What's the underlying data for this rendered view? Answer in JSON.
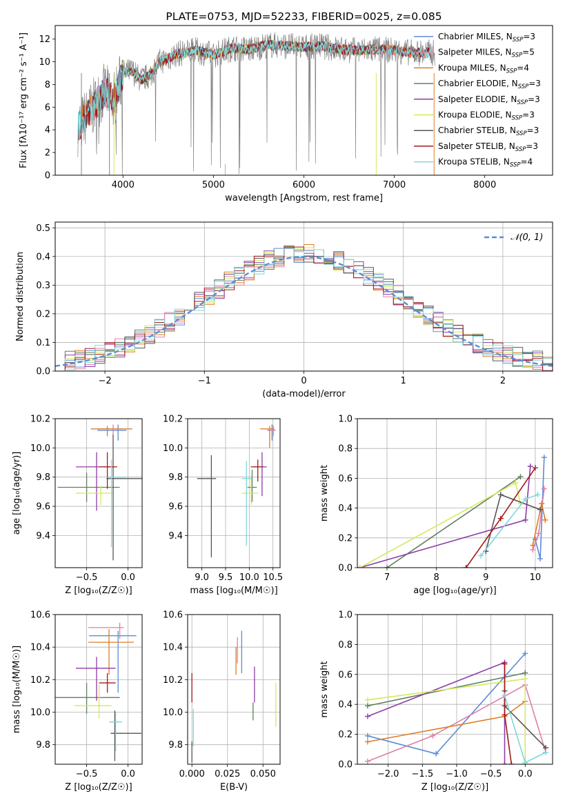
{
  "figure": {
    "title": "PLATE=0753, MJD=52233, FIBERID=0025, z=0.085"
  },
  "colors": {
    "Chabrier MILES": "#5b8bd6",
    "Salpeter MILES": "#e07ea8",
    "Kroupa MILES": "#e07b25",
    "Chabrier ELODIE": "#5f7f5f",
    "Salpeter ELODIE": "#8e3aa8",
    "Kroupa ELODIE": "#d6e85c",
    "Chabrier STELIB": "#555555",
    "Salpeter STELIB": "#a31818",
    "Kroupa STELIB": "#7fd6dc"
  },
  "chart_data": [
    {
      "id": "spectrum",
      "type": "line",
      "title": "PLATE=0753, MJD=52233, FIBERID=0025, z=0.085",
      "xlabel": "wavelength [Angstrom, rest frame]",
      "ylabel": "Flux [fλ10⁻¹⁷ erg cm⁻² s⁻¹ A⁻¹]",
      "xlim": [
        3250,
        8750
      ],
      "ylim": [
        0,
        13.2
      ],
      "xticks": [
        4000,
        5000,
        6000,
        7000,
        8000
      ],
      "yticks": [
        0,
        2,
        4,
        6,
        8,
        10,
        12
      ],
      "legend_position": "top-right",
      "legend": [
        "Chabrier MILES, N_SSP=3",
        "Salpeter MILES, N_SSP=5",
        "Kroupa MILES, N_SSP=4",
        "Chabrier ELODIE, N_SSP=3",
        "Salpeter ELODIE, N_SSP=3",
        "Kroupa ELODIE, N_SSP=3",
        "Chabrier STELIB, N_SSP=3",
        "Salpeter STELIB, N_SSP=3",
        "Kroupa STELIB, N_SSP=4"
      ],
      "continuum": {
        "x": [
          3500,
          3600,
          3700,
          3800,
          3900,
          4000,
          4100,
          4200,
          4300,
          4400,
          4500,
          4600,
          4800,
          5000,
          5200,
          5400,
          5600,
          5800,
          6000,
          6200,
          6400,
          6600,
          6800,
          7000,
          7200,
          7400
        ],
        "y": [
          4.2,
          5.2,
          6.3,
          7.4,
          6.6,
          9.0,
          9.2,
          8.4,
          8.8,
          10.0,
          10.3,
          10.7,
          11.0,
          10.6,
          11.2,
          11.1,
          11.5,
          11.4,
          11.3,
          11.4,
          11.1,
          11.0,
          11.1,
          11.0,
          10.8,
          10.8
        ]
      },
      "data_range": [
        3500,
        7450
      ],
      "model_ranges": {
        "Chabrier MILES": [
          3540,
          7400
        ],
        "Salpeter MILES": [
          3540,
          7400
        ],
        "Kroupa MILES": [
          3540,
          7420
        ],
        "Chabrier ELODIE": [
          3900,
          6800
        ],
        "Salpeter ELODIE": [
          3900,
          6800
        ],
        "Kroupa ELODIE": [
          3900,
          6800
        ],
        "Chabrier STELIB": [
          3500,
          7400
        ],
        "Salpeter STELIB": [
          3500,
          7400
        ],
        "Kroupa STELIB": [
          3500,
          7420
        ]
      }
    },
    {
      "id": "residuals",
      "type": "line",
      "xlabel": "(data-model)/error",
      "ylabel": "Normed distribution",
      "xlim": [
        -2.5,
        2.5
      ],
      "ylim": [
        0,
        0.52
      ],
      "xticks": [
        -2,
        -1,
        0,
        1,
        2
      ],
      "yticks": [
        0.0,
        0.1,
        0.2,
        0.3,
        0.4,
        0.5
      ],
      "legend_position": "top-right",
      "reference_label": "𝒩(0, 1)",
      "reference_color": "#5b8bd6"
    },
    {
      "id": "age-z",
      "type": "scatter",
      "xlabel": "Z [log₁₀(Z/Z☉)]",
      "ylabel": "age  [log₁₀(age/yr)]",
      "xlim": [
        -0.88,
        0.17
      ],
      "ylim": [
        9.18,
        10.2
      ],
      "xticks": [
        -0.5,
        0.0
      ],
      "yticks": [
        9.4,
        9.6,
        9.8,
        10.0,
        10.2
      ],
      "series": [
        {
          "name": "Chabrier MILES",
          "x": -0.12,
          "xerr": [
            0.25,
            0.1
          ],
          "y": 10.12,
          "yerr": [
            0.07,
            0.04
          ]
        },
        {
          "name": "Salpeter MILES",
          "x": -0.18,
          "xerr": [
            0.2,
            0.12
          ],
          "y": 10.13,
          "yerr": [
            0.05,
            0.03
          ]
        },
        {
          "name": "Kroupa MILES",
          "x": -0.25,
          "xerr": [
            0.2,
            0.3
          ],
          "y": 10.13,
          "yerr": [
            0.05,
            0.02
          ]
        },
        {
          "name": "Chabrier ELODIE",
          "x": -0.5,
          "xerr": [
            0.35,
            0.4
          ],
          "y": 9.73,
          "yerr": [
            0.1,
            0.1
          ]
        },
        {
          "name": "Salpeter ELODIE",
          "x": -0.38,
          "xerr": [
            0.25,
            0.2
          ],
          "y": 9.87,
          "yerr": [
            0.3,
            0.1
          ]
        },
        {
          "name": "Kroupa ELODIE",
          "x": -0.33,
          "xerr": [
            0.3,
            0.15
          ],
          "y": 9.69,
          "yerr": [
            0.08,
            0.05
          ]
        },
        {
          "name": "Chabrier STELIB",
          "x": -0.18,
          "xerr": [
            0.08,
            0.35
          ],
          "y": 9.79,
          "yerr": [
            0.56,
            0.3
          ]
        },
        {
          "name": "Salpeter STELIB",
          "x": -0.25,
          "xerr": [
            0.1,
            0.12
          ],
          "y": 9.87,
          "yerr": [
            0.15,
            0.1
          ]
        },
        {
          "name": "Kroupa STELIB",
          "x": -0.2,
          "xerr": [
            0.05,
            0.18
          ],
          "y": 9.8,
          "yerr": [
            0.48,
            0.12
          ]
        }
      ]
    },
    {
      "id": "age-mass",
      "type": "scatter",
      "xlabel": "mass [log₁₀(M/M☉)]",
      "ylabel": "",
      "xlim": [
        8.7,
        10.65
      ],
      "ylim": [
        9.18,
        10.2
      ],
      "xticks": [
        9.0,
        9.5,
        10.0,
        10.5
      ],
      "yticks": [
        9.4,
        9.6,
        9.8,
        10.0,
        10.2
      ],
      "series": [
        {
          "name": "Chabrier MILES",
          "x": 10.48,
          "xerr": [
            0.1,
            0.05
          ],
          "y": 10.12,
          "yerr": [
            0.07,
            0.04
          ]
        },
        {
          "name": "Salpeter MILES",
          "x": 10.51,
          "xerr": [
            0.1,
            0.05
          ],
          "y": 10.12,
          "yerr": [
            0.04,
            0.03
          ]
        },
        {
          "name": "Kroupa MILES",
          "x": 10.43,
          "xerr": [
            0.2,
            0.1
          ],
          "y": 10.13,
          "yerr": [
            0.13,
            0.02
          ]
        },
        {
          "name": "Chabrier ELODIE",
          "x": 10.06,
          "xerr": [
            0.1,
            0.1
          ],
          "y": 9.73,
          "yerr": [
            0.1,
            0.12
          ]
        },
        {
          "name": "Salpeter ELODIE",
          "x": 10.27,
          "xerr": [
            0.2,
            0.1
          ],
          "y": 9.87,
          "yerr": [
            0.2,
            0.1
          ]
        },
        {
          "name": "Kroupa ELODIE",
          "x": 10.04,
          "xerr": [
            0.2,
            0.15
          ],
          "y": 9.69,
          "yerr": [
            0.08,
            0.12
          ]
        },
        {
          "name": "Chabrier STELIB",
          "x": 9.2,
          "xerr": [
            0.3,
            0.1
          ],
          "y": 9.79,
          "yerr": [
            0.54,
            0.16
          ]
        },
        {
          "name": "Salpeter STELIB",
          "x": 10.18,
          "xerr": [
            0.15,
            0.12
          ],
          "y": 9.87,
          "yerr": [
            0.1,
            0.05
          ]
        },
        {
          "name": "Kroupa STELIB",
          "x": 9.94,
          "xerr": [
            0.1,
            0.1
          ],
          "y": 9.79,
          "yerr": [
            0.46,
            0.12
          ]
        }
      ]
    },
    {
      "id": "weight-age",
      "type": "line",
      "xlabel": "age  [log₁₀(age/yr)]",
      "ylabel": "mass weight",
      "xlim": [
        6.4,
        10.35
      ],
      "ylim": [
        0,
        1
      ],
      "xticks": [
        7,
        8,
        9,
        10
      ],
      "yticks": [
        0.0,
        0.2,
        0.4,
        0.6,
        0.8,
        1.0
      ],
      "series": [
        {
          "name": "Chabrier MILES",
          "x": [
            10.0,
            10.1,
            10.18
          ],
          "y": [
            0.19,
            0.06,
            0.74
          ]
        },
        {
          "name": "Salpeter MILES",
          "x": [
            9.95,
            10.07,
            10.18
          ],
          "y": [
            0.12,
            0.23,
            0.53
          ]
        },
        {
          "name": "Kroupa MILES",
          "x": [
            9.95,
            10.13,
            10.2
          ],
          "y": [
            0.15,
            0.43,
            0.32
          ]
        },
        {
          "name": "Chabrier ELODIE",
          "x": [
            7.0,
            9.7
          ],
          "y": [
            0.0,
            0.61
          ]
        },
        {
          "name": "Salpeter ELODIE",
          "x": [
            6.45,
            9.8,
            9.9
          ],
          "y": [
            0.0,
            0.32,
            0.68
          ]
        },
        {
          "name": "Kroupa ELODIE",
          "x": [
            6.45,
            9.6,
            9.7
          ],
          "y": [
            0.0,
            0.57,
            0.43
          ]
        },
        {
          "name": "Chabrier STELIB",
          "x": [
            9.0,
            9.3,
            10.1
          ],
          "y": [
            0.11,
            0.49,
            0.39
          ]
        },
        {
          "name": "Salpeter STELIB",
          "x": [
            8.6,
            9.3,
            10.0
          ],
          "y": [
            0.0,
            0.33,
            0.67
          ]
        },
        {
          "name": "Kroupa STELIB",
          "x": [
            8.9,
            9.8,
            10.05
          ],
          "y": [
            0.08,
            0.46,
            0.49
          ]
        }
      ]
    },
    {
      "id": "mass-z",
      "type": "scatter",
      "xlabel": "Z [log₁₀(Z/Z☉)]",
      "ylabel": "mass [log₁₀(M/M☉)]",
      "xlim": [
        -0.88,
        0.17
      ],
      "ylim": [
        9.68,
        10.6
      ],
      "xticks": [
        -0.5,
        0.0
      ],
      "yticks": [
        9.8,
        10.0,
        10.2,
        10.4,
        10.6
      ],
      "series": [
        {
          "name": "Chabrier MILES",
          "x": -0.12,
          "xerr": [
            0.35,
            0.22
          ],
          "y": 10.47,
          "yerr": [
            0.35,
            0.03
          ]
        },
        {
          "name": "Salpeter MILES",
          "x": -0.1,
          "xerr": [
            0.38,
            0.05
          ],
          "y": 10.52,
          "yerr": [
            0.07,
            0.03
          ]
        },
        {
          "name": "Kroupa MILES",
          "x": -0.23,
          "xerr": [
            0.25,
            0.3
          ],
          "y": 10.43,
          "yerr": [
            0.2,
            0.08
          ]
        },
        {
          "name": "Chabrier ELODIE",
          "x": -0.5,
          "xerr": [
            0.38,
            0.4
          ],
          "y": 10.09,
          "yerr": [
            0.1,
            0.09
          ]
        },
        {
          "name": "Salpeter ELODIE",
          "x": -0.38,
          "xerr": [
            0.25,
            0.23
          ],
          "y": 10.27,
          "yerr": [
            0.2,
            0.07
          ]
        },
        {
          "name": "Kroupa ELODIE",
          "x": -0.35,
          "xerr": [
            0.3,
            0.15
          ],
          "y": 10.04,
          "yerr": [
            0.08,
            0.13
          ]
        },
        {
          "name": "Chabrier STELIB",
          "x": -0.16,
          "xerr": [
            0.05,
            0.32
          ],
          "y": 9.87,
          "yerr": [
            0.17,
            0.14
          ]
        },
        {
          "name": "Salpeter STELIB",
          "x": -0.25,
          "xerr": [
            0.1,
            0.1
          ],
          "y": 10.18,
          "yerr": [
            0.06,
            0.06
          ]
        },
        {
          "name": "Kroupa STELIB",
          "x": -0.15,
          "xerr": [
            0.08,
            0.08
          ],
          "y": 9.94,
          "yerr": [
            0.18,
            0.06
          ]
        }
      ]
    },
    {
      "id": "mass-ebv",
      "type": "scatter",
      "xlabel": "E(B-V)",
      "ylabel": "",
      "xlim": [
        -0.003,
        0.062
      ],
      "ylim": [
        9.68,
        10.6
      ],
      "xticks": [
        0.0,
        0.025,
        0.05
      ],
      "xticklabels": [
        "0.000",
        "0.025",
        "0.050"
      ],
      "yticks": [
        9.8,
        10.0,
        10.2,
        10.4,
        10.6
      ],
      "series": [
        {
          "name": "Chabrier MILES",
          "x": 0.035,
          "y": 10.37,
          "yerr": [
            0.13,
            0.13
          ]
        },
        {
          "name": "Salpeter MILES",
          "x": 0.032,
          "y": 10.38,
          "yerr": [
            0.08,
            0.08
          ]
        },
        {
          "name": "Kroupa MILES",
          "x": 0.031,
          "y": 10.34,
          "yerr": [
            0.11,
            0.06
          ]
        },
        {
          "name": "Chabrier ELODIE",
          "x": 0.043,
          "y": 10.0,
          "yerr": [
            0.05,
            0.06
          ]
        },
        {
          "name": "Salpeter ELODIE",
          "x": 0.044,
          "y": 10.17,
          "yerr": [
            0.11,
            0.11
          ]
        },
        {
          "name": "Kroupa ELODIE",
          "x": 0.059,
          "y": 10.04,
          "yerr": [
            0.13,
            0.14
          ]
        },
        {
          "name": "Chabrier STELIB",
          "x": 0.0,
          "y": 9.77,
          "yerr": [
            0.08,
            0.05
          ]
        },
        {
          "name": "Salpeter STELIB",
          "x": 0.0,
          "y": 10.15,
          "yerr": [
            0.09,
            0.09
          ]
        },
        {
          "name": "Kroupa STELIB",
          "x": 0.001,
          "y": 9.92,
          "yerr": [
            0.13,
            0.1
          ]
        }
      ]
    },
    {
      "id": "weight-z",
      "type": "line",
      "xlabel": "Z [log₁₀(Z/Z☉)]",
      "ylabel": "mass weight",
      "xlim": [
        -2.45,
        0.4
      ],
      "ylim": [
        0,
        1
      ],
      "xticks": [
        -2.0,
        -1.5,
        -1.0,
        -0.5,
        0.0
      ],
      "yticks": [
        0.0,
        0.2,
        0.4,
        0.6,
        0.8,
        1.0
      ],
      "series": [
        {
          "name": "Chabrier MILES",
          "x": [
            -2.3,
            -1.3,
            0.0
          ],
          "y": [
            0.19,
            0.07,
            0.74
          ]
        },
        {
          "name": "Salpeter MILES",
          "x": [
            -2.3,
            -1.35,
            0.0,
            0.3
          ],
          "y": [
            0.02,
            0.19,
            0.53,
            0.08
          ]
        },
        {
          "name": "Kroupa MILES",
          "x": [
            -2.3,
            -0.3,
            0.0
          ],
          "y": [
            0.15,
            0.32,
            0.42
          ]
        },
        {
          "name": "Chabrier ELODIE",
          "x": [
            -2.3,
            0.0
          ],
          "y": [
            0.39,
            0.61
          ]
        },
        {
          "name": "Salpeter ELODIE",
          "x": [
            -2.3,
            -0.3,
            -0.3
          ],
          "y": [
            0.32,
            0.68,
            0.0
          ]
        },
        {
          "name": "Kroupa ELODIE",
          "x": [
            -2.3,
            0.0,
            0.0
          ],
          "y": [
            0.43,
            0.57,
            0.0
          ]
        },
        {
          "name": "Chabrier STELIB",
          "x": [
            -0.3,
            -0.3,
            0.3
          ],
          "y": [
            0.49,
            0.39,
            0.11
          ]
        },
        {
          "name": "Salpeter STELIB",
          "x": [
            -0.3,
            -0.3,
            -0.2
          ],
          "y": [
            0.67,
            0.33,
            0.0
          ]
        },
        {
          "name": "Kroupa STELIB",
          "x": [
            -0.3,
            0.0,
            0.3
          ],
          "y": [
            0.46,
            0.01,
            0.08
          ]
        }
      ]
    }
  ]
}
